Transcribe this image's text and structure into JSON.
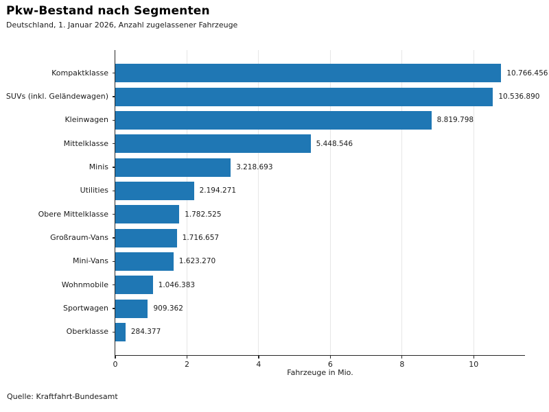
{
  "header": {
    "title": "Pkw-Bestand nach Segmenten",
    "subtitle": "Deutschland, 1. Januar 2026, Anzahl zugelassener Fahrzeuge"
  },
  "footer": {
    "source": "Quelle: Kraftfahrt-Bundesamt"
  },
  "chart_data": {
    "type": "bar",
    "orientation": "horizontal",
    "title": "Pkw-Bestand nach Segmenten",
    "subtitle": "Deutschland, 1. Januar 2026, Anzahl zugelassener Fahrzeuge",
    "categories": [
      "Kompaktklasse",
      "SUVs (inkl. Geländewagen)",
      "Kleinwagen",
      "Mittelklasse",
      "Minis",
      "Utilities",
      "Obere Mittelklasse",
      "Großraum-Vans",
      "Mini-Vans",
      "Wohnmobile",
      "Sportwagen",
      "Oberklasse"
    ],
    "values": [
      10766456,
      10536890,
      8819798,
      5448546,
      3218693,
      2194271,
      1782525,
      1716657,
      1623270,
      1046383,
      909362,
      284377
    ],
    "value_labels": [
      "10.766.456",
      "10.536.890",
      "8.819.798",
      "5.448.546",
      "3.218.693",
      "2.194.271",
      "1.782.525",
      "1.716.657",
      "1.623.270",
      "1.046.383",
      "909.362",
      "284.377"
    ],
    "xlabel": "Fahrzeuge in Mio.",
    "x_ticks": [
      0,
      2,
      4,
      6,
      8,
      10
    ],
    "x_tick_labels": [
      "0",
      "2",
      "4",
      "6",
      "8",
      "10"
    ],
    "xlim": [
      0,
      11.43
    ],
    "grid": "vertical gridlines at x ticks",
    "legend": "none",
    "bar_color": "#1f77b4",
    "gridline_color": "#e6e6e6",
    "spine_color": "#262626",
    "source": "Quelle: Kraftfahrt-Bundesamt"
  }
}
